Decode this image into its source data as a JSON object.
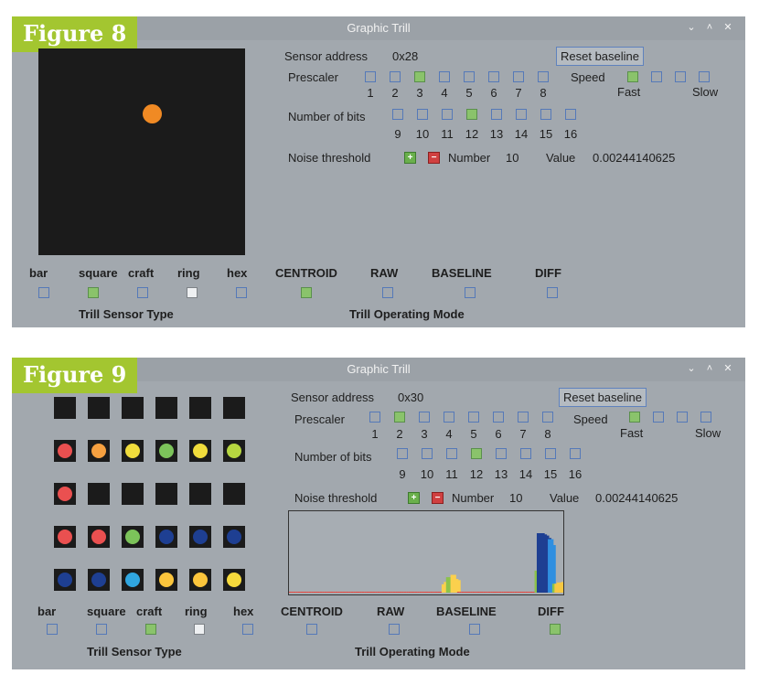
{
  "figures": [
    {
      "figure_label": "Figure 8",
      "window_title": "Graphic Trill",
      "sensor_address_label": "Sensor address",
      "sensor_address": "0x28",
      "reset_label": "Reset baseline",
      "prescaler_label": "Prescaler",
      "prescaler_values": [
        "1",
        "2",
        "3",
        "4",
        "5",
        "6",
        "7",
        "8"
      ],
      "prescaler_selected": 3,
      "speed_label": "Speed",
      "speed_fast": "Fast",
      "speed_slow": "Slow",
      "speed_selected": 1,
      "bits_label": "Number of bits",
      "bits_values": [
        "9",
        "10",
        "11",
        "12",
        "13",
        "14",
        "15",
        "16"
      ],
      "bits_selected": 12,
      "noise_label": "Noise threshold",
      "number_label": "Number",
      "number_value": "10",
      "value_label": "Value",
      "value_value": "0.00244140625",
      "sensor_types": [
        "bar",
        "square",
        "craft",
        "ring",
        "hex"
      ],
      "sensor_type_state": [
        "off",
        "on",
        "off",
        "white",
        "off"
      ],
      "sensor_type_caption": "Trill Sensor Type",
      "modes": [
        "CENTROID",
        "RAW",
        "BASELINE",
        "DIFF"
      ],
      "mode_state": [
        "on",
        "off",
        "off",
        "off"
      ],
      "mode_caption": "Trill Operating Mode",
      "touch_color": "#f08a24"
    },
    {
      "figure_label": "Figure 9",
      "window_title": "Graphic Trill",
      "sensor_address_label": "Sensor address",
      "sensor_address": "0x30",
      "reset_label": "Reset baseline",
      "prescaler_label": "Prescaler",
      "prescaler_values": [
        "1",
        "2",
        "3",
        "4",
        "5",
        "6",
        "7",
        "8"
      ],
      "prescaler_selected": 2,
      "speed_label": "Speed",
      "speed_fast": "Fast",
      "speed_slow": "Slow",
      "speed_selected": 1,
      "bits_label": "Number of bits",
      "bits_values": [
        "9",
        "10",
        "11",
        "12",
        "13",
        "14",
        "15",
        "16"
      ],
      "bits_selected": 12,
      "noise_label": "Noise threshold",
      "number_label": "Number",
      "number_value": "10",
      "value_label": "Value",
      "value_value": "0.00244140625",
      "sensor_types": [
        "bar",
        "square",
        "craft",
        "ring",
        "hex"
      ],
      "sensor_type_state": [
        "off",
        "off",
        "on",
        "white",
        "off"
      ],
      "sensor_type_caption": "Trill Sensor Type",
      "modes": [
        "CENTROID",
        "RAW",
        "BASELINE",
        "DIFF"
      ],
      "mode_state": [
        "off",
        "off",
        "off",
        "on"
      ],
      "mode_caption": "Trill Operating Mode",
      "pad_colors": [
        [
          "#1b1b1b",
          "#1b1b1b",
          "#1b1b1b",
          "#1b1b1b",
          "#1b1b1b",
          "#1b1b1b"
        ],
        [
          "#ea5050",
          "#f5a040",
          "#f0dc3c",
          "#7cc35a",
          "#f0dc3c",
          "#b6d640"
        ],
        [
          "#ea5050",
          "#1b1b1b",
          "#1b1b1b",
          "#1b1b1b",
          "#1b1b1b",
          "#1b1b1b"
        ],
        [
          "#ea5050",
          "#ea5050",
          "#7cc35a",
          "#1e3f92",
          "#1e3f92",
          "#1e3f92"
        ],
        [
          "#1e3f92",
          "#1e3f92",
          "#30a6e0",
          "#fbc53c",
          "#fbc53c",
          "#f6da3c"
        ]
      ]
    }
  ],
  "chart_data": {
    "type": "bar",
    "title": "",
    "xlabel": "",
    "ylabel": "",
    "ylim": [
      0,
      100
    ],
    "values": [
      1,
      1,
      1,
      1,
      1,
      1,
      1,
      1,
      1,
      1,
      1,
      1,
      1,
      1,
      1,
      1,
      1,
      1,
      1,
      1,
      1,
      1,
      1,
      1,
      1,
      1,
      1,
      1,
      1,
      1,
      1,
      1,
      1,
      1,
      1,
      1,
      1,
      1,
      1,
      1,
      1,
      1,
      1,
      1,
      1,
      1,
      1,
      1,
      1,
      1,
      1,
      1,
      1,
      1,
      1,
      1,
      1,
      1,
      1,
      1,
      1,
      1,
      1,
      1,
      1,
      1,
      1,
      1,
      1,
      14,
      18,
      26,
      20,
      30,
      23,
      21,
      1,
      1,
      1,
      1,
      1,
      1,
      1,
      1,
      1,
      1,
      1,
      1,
      1,
      1,
      1,
      1,
      1,
      1,
      1,
      1,
      1,
      1,
      1,
      1,
      1,
      1,
      1,
      1,
      1,
      1,
      1,
      1,
      1,
      1,
      1,
      37,
      100,
      100,
      98,
      96,
      92,
      90,
      80,
      15,
      15,
      17,
      17,
      18
    ],
    "colors": [
      "#e8453c",
      "#fbd04d",
      "#8cc34a",
      "#1e3f92",
      "#2f8fe0",
      "#f7c843"
    ]
  }
}
